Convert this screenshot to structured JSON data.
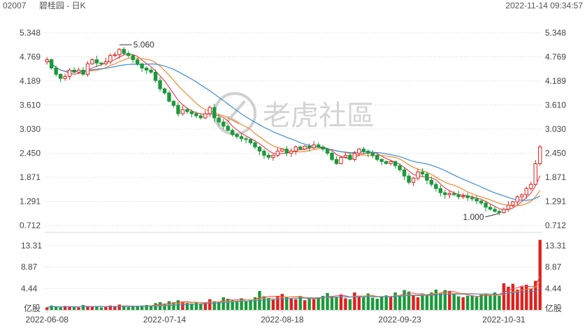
{
  "header": {
    "code": "02007",
    "title": "碧桂园 - 日K",
    "timestamp": "2022-11-14 09:34:57"
  },
  "colors": {
    "up": "#e0201d",
    "down": "#1a9a3a",
    "ma5": "#e8475a",
    "ma10": "#f0892b",
    "ma20": "#3b8ed6",
    "grid": "#e4e4e4",
    "axis_text": "#444444"
  },
  "watermark": {
    "text": "老虎社區",
    "icon": "tiger-logo-icon"
  },
  "chart_data": {
    "type": "candlestick",
    "price_axis": {
      "ticks": [
        "5.348",
        "4.769",
        "4.189",
        "3.610",
        "3.030",
        "2.450",
        "1.871",
        "1.291",
        "0.712"
      ],
      "range": [
        0.712,
        5.348
      ]
    },
    "volume_axis": {
      "ticks": [
        "13.31",
        "8.87",
        "4.44"
      ],
      "unit_label": "亿股",
      "range": [
        0,
        14.6
      ]
    },
    "x_axis_labels": [
      "2022-06-08",
      "2022-07-14",
      "2022-08-18",
      "2022-09-23",
      "2022-10-31"
    ],
    "annotations": [
      {
        "text": "5.060",
        "kind": "high",
        "value": 5.06,
        "index": 16
      },
      {
        "text": "1.000",
        "kind": "low",
        "value": 1.0,
        "index": 100
      }
    ],
    "moving_averages": [
      {
        "key": "ma5",
        "period": 5
      },
      {
        "key": "ma10",
        "period": 10
      },
      {
        "key": "ma20",
        "period": 20
      }
    ],
    "closes": [
      4.7,
      4.5,
      4.35,
      4.25,
      4.3,
      4.45,
      4.4,
      4.45,
      4.35,
      4.6,
      4.7,
      4.62,
      4.6,
      4.65,
      4.8,
      4.82,
      4.95,
      4.85,
      4.8,
      4.7,
      4.6,
      4.5,
      4.45,
      4.4,
      4.2,
      4.0,
      3.9,
      3.7,
      3.6,
      3.4,
      3.5,
      3.45,
      3.4,
      3.35,
      3.3,
      3.4,
      3.55,
      3.3,
      3.2,
      3.1,
      3.0,
      2.9,
      2.85,
      2.8,
      2.78,
      2.7,
      2.6,
      2.5,
      2.4,
      2.35,
      2.4,
      2.5,
      2.55,
      2.45,
      2.5,
      2.6,
      2.55,
      2.62,
      2.58,
      2.65,
      2.6,
      2.55,
      2.45,
      2.3,
      2.2,
      2.35,
      2.4,
      2.3,
      2.45,
      2.55,
      2.5,
      2.45,
      2.4,
      2.3,
      2.25,
      2.2,
      2.25,
      2.15,
      2.05,
      1.9,
      1.75,
      1.85,
      2.0,
      1.95,
      1.8,
      1.7,
      1.6,
      1.5,
      1.45,
      1.48,
      1.45,
      1.4,
      1.42,
      1.38,
      1.35,
      1.3,
      1.25,
      1.15,
      1.1,
      1.05,
      1.02,
      1.1,
      1.2,
      1.28,
      1.4,
      1.45,
      1.6,
      1.7,
      2.2,
      2.6
    ],
    "volumes": [
      0.5,
      0.9,
      0.6,
      0.5,
      0.8,
      0.6,
      0.7,
      0.5,
      1.0,
      0.8,
      0.6,
      0.7,
      0.5,
      0.6,
      0.9,
      0.8,
      1.1,
      0.7,
      0.6,
      0.7,
      0.8,
      0.9,
      1.0,
      0.9,
      1.4,
      1.6,
      1.2,
      1.8,
      1.5,
      2.0,
      1.7,
      1.4,
      1.3,
      1.6,
      1.2,
      1.5,
      2.2,
      1.8,
      1.6,
      2.6,
      2.3,
      2.0,
      1.9,
      2.4,
      1.8,
      2.1,
      2.6,
      3.9,
      2.8,
      2.5,
      2.2,
      2.8,
      3.3,
      2.6,
      2.4,
      2.2,
      2.9,
      2.0,
      2.3,
      2.2,
      2.6,
      2.9,
      3.5,
      2.8,
      2.7,
      3.2,
      2.4,
      2.2,
      3.6,
      2.9,
      2.6,
      3.4,
      2.5,
      2.3,
      2.7,
      3.0,
      2.8,
      3.6,
      2.9,
      4.1,
      3.8,
      3.0,
      2.6,
      3.2,
      3.0,
      3.6,
      4.2,
      3.5,
      4.1,
      3.9,
      3.2,
      2.8,
      2.6,
      2.9,
      3.0,
      2.7,
      3.1,
      3.4,
      3.0,
      3.6,
      2.9,
      5.5,
      4.8,
      5.4,
      4.2,
      4.8,
      5.2,
      4.4,
      6.0,
      14.5
    ]
  }
}
